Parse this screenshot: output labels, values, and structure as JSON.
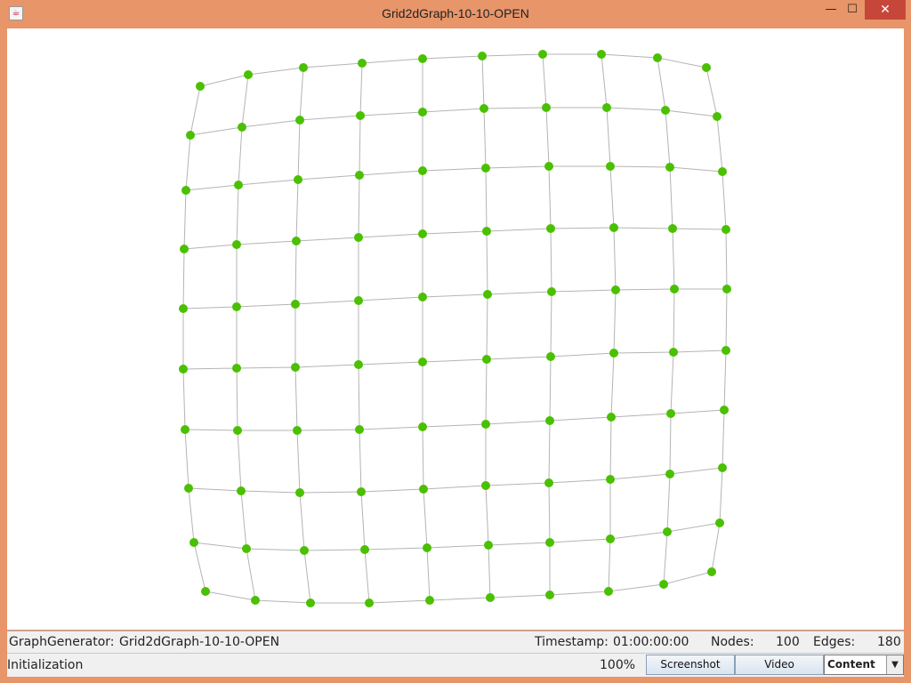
{
  "window": {
    "title": "Grid2dGraph-10-10-OPEN",
    "app_icon": "java-icon",
    "minimize": "—",
    "maximize": "☐",
    "close": "✕"
  },
  "colors": {
    "node": "#4ac000",
    "edge": "#b4b4b4",
    "frame": "#e8956a"
  },
  "graph": {
    "type": "grid",
    "rows": 10,
    "cols": 10,
    "node_count": 100,
    "edge_count": 180
  },
  "info": {
    "generator_label": "GraphGenerator:",
    "generator_value": "Grid2dGraph-10-10-OPEN",
    "timestamp_label": "Timestamp:",
    "timestamp_value": "01:00:00:00",
    "nodes_label": "Nodes:",
    "nodes_value": "100",
    "edges_label": "Edges:",
    "edges_value": "180"
  },
  "status": {
    "text": "Initialization",
    "zoom": "100%",
    "screenshot_label": "Screenshot",
    "video_label": "Video",
    "view_select": "Content",
    "view_arrow": "▼"
  }
}
